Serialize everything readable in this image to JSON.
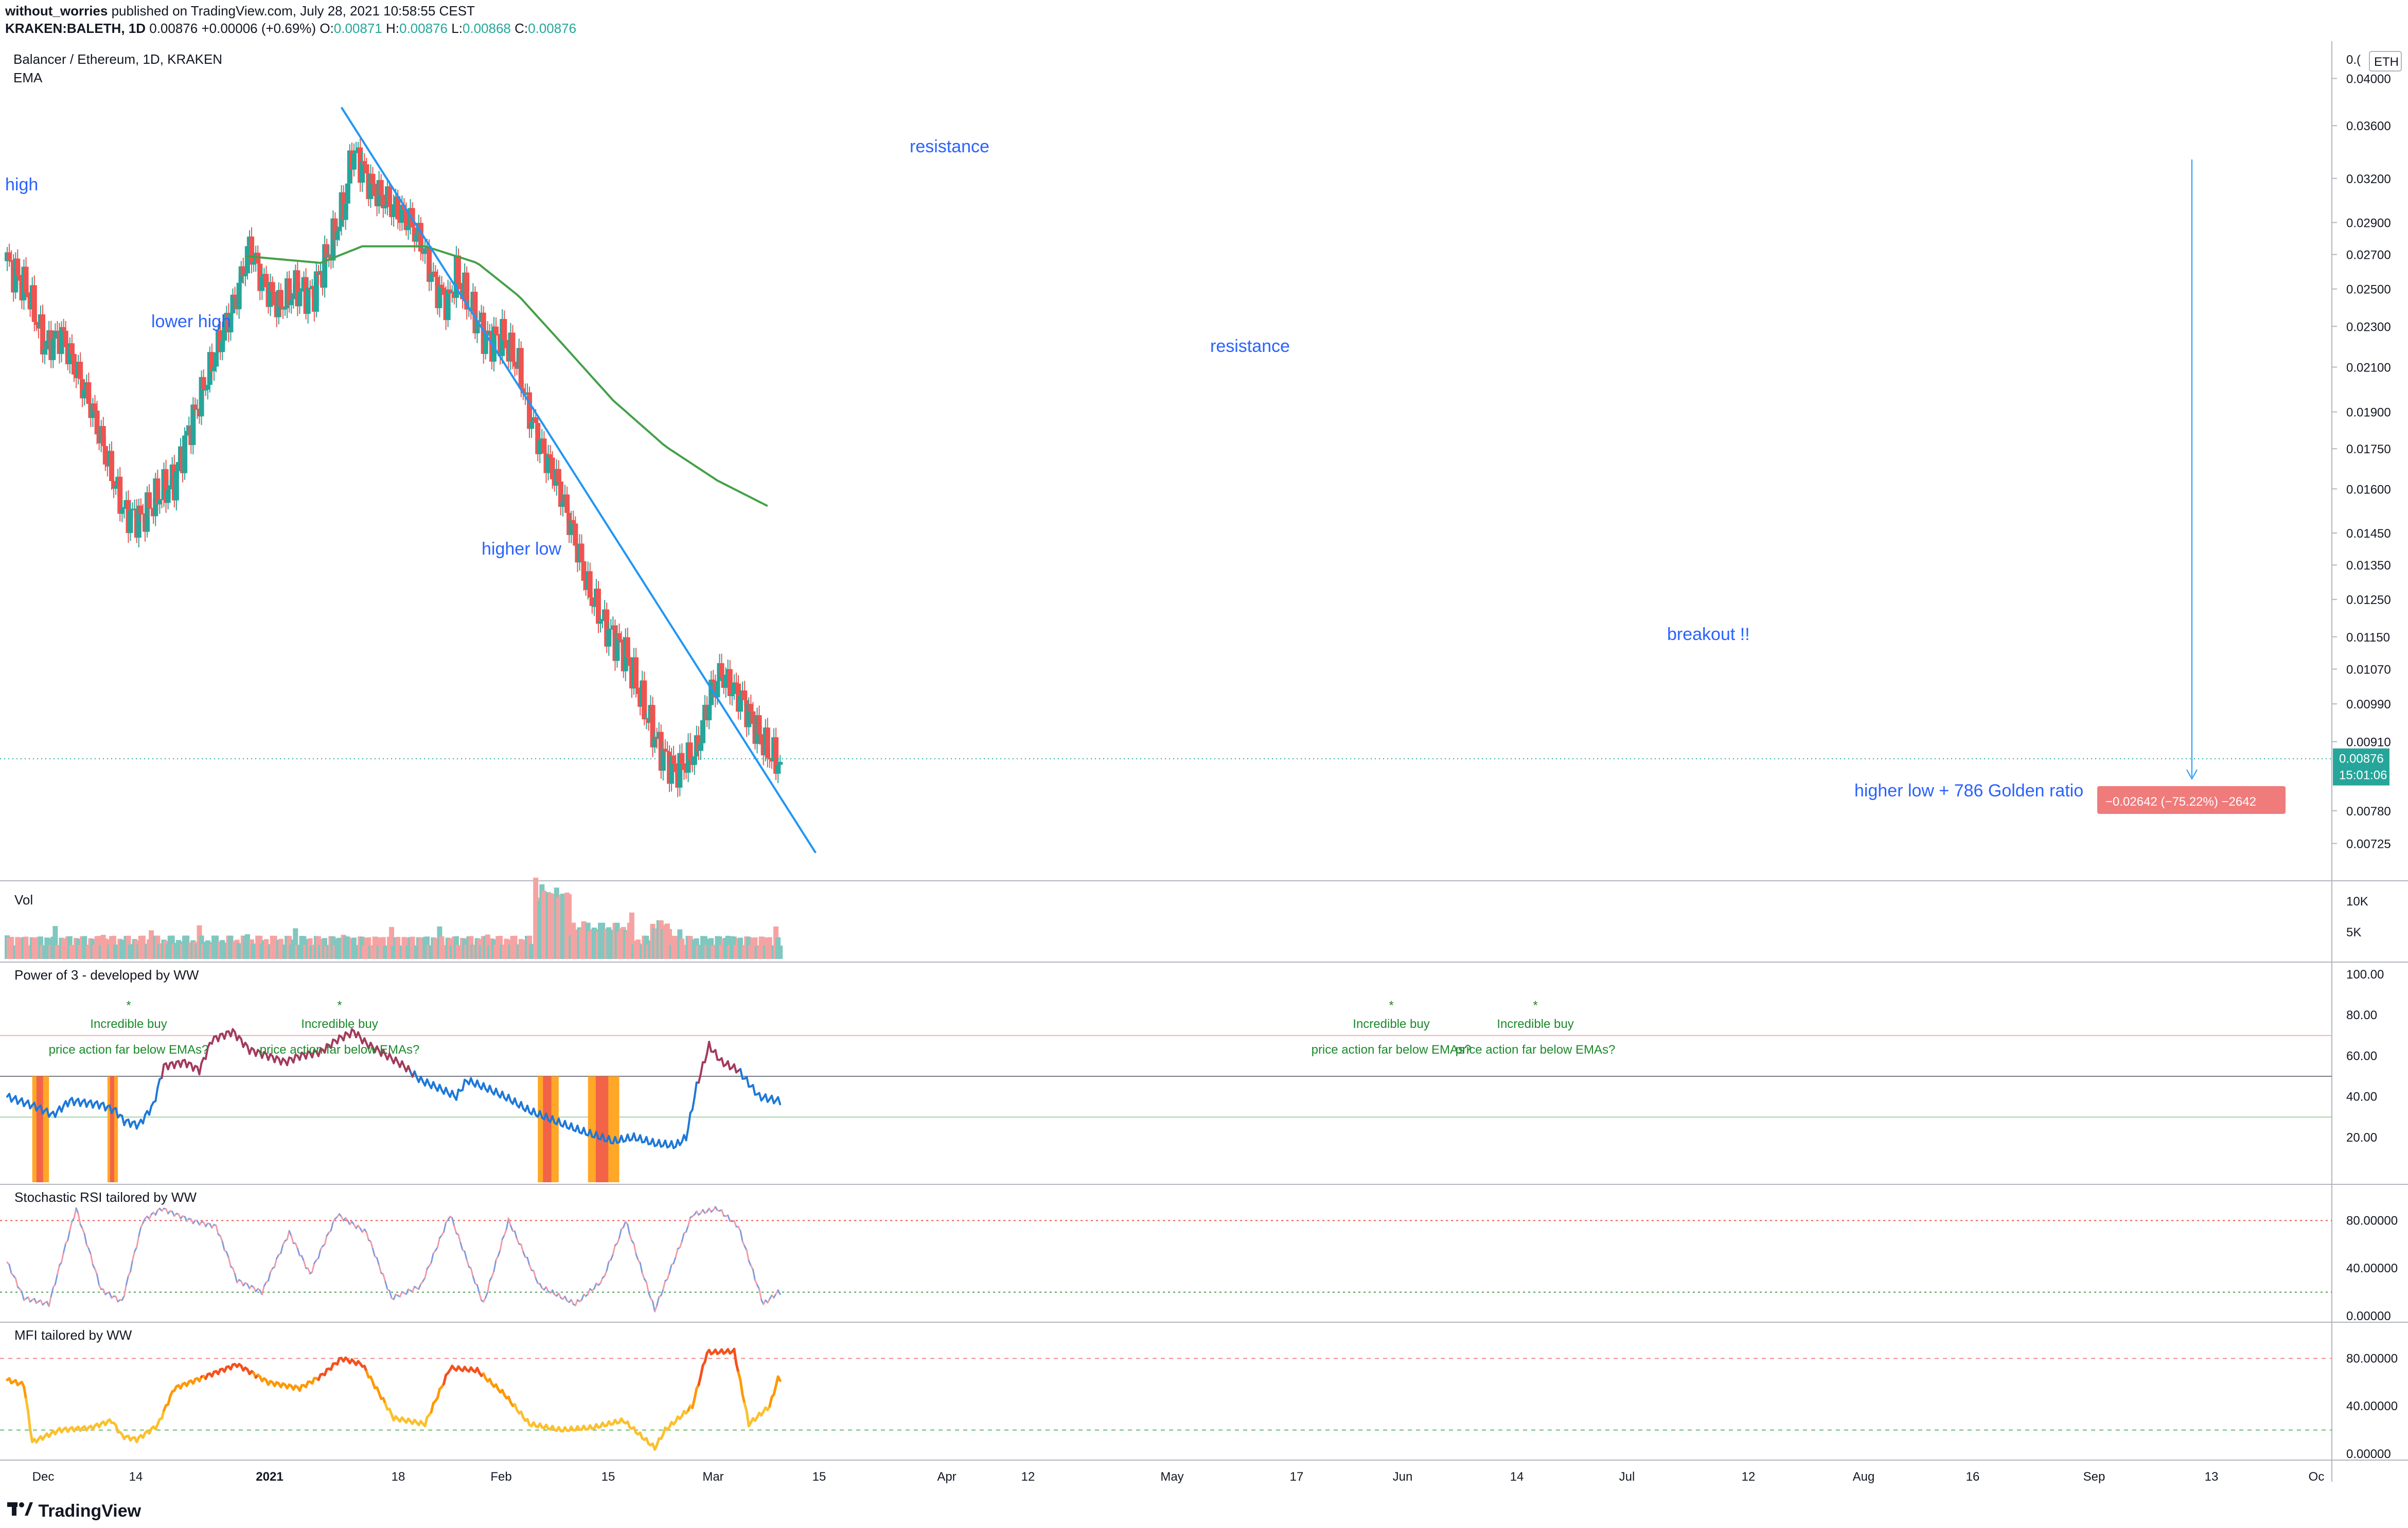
{
  "header": {
    "author": "without_worries",
    "published": "published on TradingView.com, July 28, 2021 10:58:55 CEST",
    "symbol": "KRAKEN:BALETH, 1D",
    "last": "0.00876",
    "change": "+0.00006 (+0.69%)",
    "o_label": "O:",
    "o": "0.00871",
    "h_label": "H:",
    "h": "0.00876",
    "l_label": "L:",
    "l": "0.00868",
    "c_label": "C:",
    "c": "0.00876"
  },
  "footer": {
    "brand": "TradingView"
  },
  "colors": {
    "up": "#26a69a",
    "down": "#ef5350",
    "ema": "#43a047",
    "trend": "#2196f3",
    "mfi": "#ff9800",
    "p3": "#2a6ad6"
  },
  "chart_data": [
    {
      "type": "candlestick",
      "title": "Balancer / Ethereum, 1D, KRAKEN",
      "subtitle": "EMA",
      "currency": "ETH",
      "y_scale": "log",
      "ylim": [
        0.007,
        0.042
      ],
      "y_ticks": [
        "0.04000",
        "0.03600",
        "0.03200",
        "0.02900",
        "0.02700",
        "0.02500",
        "0.02300",
        "0.02100",
        "0.01900",
        "0.01750",
        "0.01600",
        "0.01450",
        "0.01350",
        "0.01250",
        "0.01150",
        "0.01070",
        "0.00990",
        "0.00910",
        "0.00780",
        "0.00725"
      ],
      "x_tick_labels": [
        "Dec",
        "14",
        "2021",
        "18",
        "Feb",
        "15",
        "Mar",
        "15",
        "Apr",
        "12",
        "May",
        "17",
        "Jun",
        "14",
        "Jul",
        "12",
        "Aug",
        "16",
        "Sep",
        "13",
        "Oc"
      ],
      "last_price_label": "0.00876",
      "countdown_label": "15:01:06",
      "top_axis_label": "0.(",
      "price_range_label": "−0.02642 (−75.22%) −2642",
      "path_points": [
        [
          0,
          0.0266
        ],
        [
          10,
          0.0248
        ],
        [
          18,
          0.022
        ],
        [
          26,
          0.0226
        ],
        [
          34,
          0.0206
        ],
        [
          40,
          0.0193
        ],
        [
          48,
          0.017
        ],
        [
          56,
          0.0152
        ],
        [
          64,
          0.015
        ],
        [
          73,
          0.0158
        ],
        [
          80,
          0.0163
        ],
        [
          86,
          0.018
        ],
        [
          94,
          0.02
        ],
        [
          102,
          0.0223
        ],
        [
          110,
          0.0247
        ],
        [
          116,
          0.0275
        ],
        [
          122,
          0.0255
        ],
        [
          130,
          0.024
        ],
        [
          138,
          0.025
        ],
        [
          146,
          0.0247
        ],
        [
          155,
          0.0275
        ],
        [
          162,
          0.0305
        ],
        [
          165,
          0.034
        ],
        [
          168,
          0.0335
        ],
        [
          175,
          0.0312
        ],
        [
          185,
          0.03
        ],
        [
          193,
          0.029
        ],
        [
          199,
          0.0275
        ],
        [
          205,
          0.0252
        ],
        [
          211,
          0.0242
        ],
        [
          215,
          0.0258
        ],
        [
          221,
          0.0242
        ],
        [
          230,
          0.0223
        ],
        [
          237,
          0.0225
        ],
        [
          242,
          0.0215
        ],
        [
          245,
          0.021
        ],
        [
          249,
          0.0192
        ],
        [
          256,
          0.0175
        ],
        [
          263,
          0.0163
        ],
        [
          271,
          0.0145
        ],
        [
          278,
          0.0128
        ],
        [
          286,
          0.0118
        ],
        [
          296,
          0.0111
        ],
        [
          305,
          0.0098
        ],
        [
          312,
          0.009
        ],
        [
          320,
          0.0085
        ],
        [
          330,
          0.0089
        ],
        [
          337,
          0.0102
        ],
        [
          342,
          0.0106
        ],
        [
          348,
          0.0102
        ],
        [
          352,
          0.01
        ],
        [
          358,
          0.0094
        ],
        [
          364,
          0.0089
        ],
        [
          369,
          0.0087
        ]
      ],
      "ema": {
        "name": "EMA",
        "points": [
          [
            114,
            0.0269
          ],
          [
            150,
            0.0265
          ],
          [
            170,
            0.0275
          ],
          [
            200,
            0.0275
          ],
          [
            225,
            0.0265
          ],
          [
            245,
            0.0246
          ],
          [
            265,
            0.0222
          ],
          [
            290,
            0.0195
          ],
          [
            315,
            0.0176
          ],
          [
            340,
            0.0163
          ],
          [
            364,
            0.0154
          ]
        ]
      },
      "trendline": {
        "points": [
          [
            160,
            0.0375
          ],
          [
            387,
            0.0071
          ]
        ]
      },
      "annotations": [
        "high",
        "lower high",
        "higher low",
        "resistance",
        "resistance",
        "breakout !!",
        "higher low + 786 Golden ratio"
      ]
    },
    {
      "type": "bar",
      "title": "Vol",
      "y_ticks": [
        "10K",
        "5K"
      ]
    },
    {
      "type": "line",
      "title": "Power of 3 - developed by WW",
      "ylim": [
        0,
        100
      ],
      "y_ticks": [
        "100.00",
        "80.00",
        "60.00",
        "40.00",
        "20.00"
      ],
      "levels": [
        70,
        50,
        30
      ],
      "annotations": [
        "*",
        "Incredible buy",
        "price action far below EMAs?",
        "*",
        "Incredible buy",
        "price action far below EMAs?",
        "*",
        "Incredible buy",
        "price action far below EMAs?",
        "*",
        "Incredible buy",
        "price action far below EMAs?"
      ],
      "series": [
        {
          "points": [
            [
              0,
              40
            ],
            [
              14,
              35
            ],
            [
              22,
              31
            ],
            [
              30,
              38
            ],
            [
              45,
              36
            ],
            [
              52,
              33
            ],
            [
              56,
              28
            ],
            [
              63,
              26
            ],
            [
              70,
              36
            ],
            [
              75,
              55
            ],
            [
              85,
              57
            ],
            [
              92,
              53
            ],
            [
              98,
              68
            ],
            [
              108,
              72
            ],
            [
              116,
              63
            ],
            [
              125,
              60
            ],
            [
              133,
              57
            ],
            [
              140,
              60
            ],
            [
              150,
              62
            ],
            [
              158,
              68
            ],
            [
              166,
              72
            ],
            [
              172,
              66
            ],
            [
              182,
              60
            ],
            [
              190,
              55
            ],
            [
              198,
              48
            ],
            [
              207,
              44
            ],
            [
              215,
              40
            ],
            [
              220,
              48
            ],
            [
              225,
              46
            ],
            [
              232,
              43
            ],
            [
              240,
              39
            ],
            [
              250,
              33
            ],
            [
              262,
              28
            ],
            [
              275,
              23
            ],
            [
              290,
              18
            ],
            [
              300,
              20
            ],
            [
              310,
              17
            ],
            [
              320,
              16
            ],
            [
              325,
              20
            ],
            [
              330,
              45
            ],
            [
              336,
              65
            ],
            [
              342,
              57
            ],
            [
              350,
              53
            ],
            [
              360,
              40
            ],
            [
              369,
              38
            ]
          ]
        }
      ]
    },
    {
      "type": "line",
      "title": "Stochastic RSI tailored by WW",
      "ylim": [
        0,
        100
      ],
      "y_ticks": [
        "80.00000",
        "40.00000",
        "0.00000"
      ],
      "levels": [
        80,
        20
      ],
      "series": [
        {
          "points": [
            [
              0,
              45
            ],
            [
              8,
              15
            ],
            [
              20,
              10
            ],
            [
              33,
              90
            ],
            [
              45,
              22
            ],
            [
              55,
              12
            ],
            [
              65,
              80
            ],
            [
              74,
              90
            ],
            [
              88,
              80
            ],
            [
              100,
              75
            ],
            [
              110,
              30
            ],
            [
              122,
              20
            ],
            [
              135,
              70
            ],
            [
              145,
              35
            ],
            [
              158,
              85
            ],
            [
              172,
              70
            ],
            [
              184,
              15
            ],
            [
              198,
              25
            ],
            [
              212,
              85
            ],
            [
              228,
              10
            ],
            [
              240,
              80
            ],
            [
              255,
              25
            ],
            [
              272,
              10
            ],
            [
              285,
              30
            ],
            [
              296,
              80
            ],
            [
              310,
              5
            ],
            [
              320,
              50
            ],
            [
              328,
              85
            ],
            [
              340,
              90
            ],
            [
              350,
              75
            ],
            [
              362,
              10
            ],
            [
              369,
              20
            ]
          ]
        }
      ]
    },
    {
      "type": "line",
      "title": "MFI tailored by WW",
      "ylim": [
        0,
        100
      ],
      "y_ticks": [
        "80.00000",
        "40.00000",
        "0.00000"
      ],
      "levels": [
        80,
        20
      ],
      "series": [
        {
          "points": [
            [
              0,
              62
            ],
            [
              8,
              58
            ],
            [
              12,
              10
            ],
            [
              25,
              20
            ],
            [
              40,
              22
            ],
            [
              50,
              28
            ],
            [
              55,
              15
            ],
            [
              62,
              12
            ],
            [
              72,
              24
            ],
            [
              80,
              55
            ],
            [
              95,
              65
            ],
            [
              110,
              75
            ],
            [
              125,
              60
            ],
            [
              140,
              55
            ],
            [
              150,
              65
            ],
            [
              160,
              80
            ],
            [
              170,
              75
            ],
            [
              185,
              30
            ],
            [
              200,
              25
            ],
            [
              212,
              72
            ],
            [
              225,
              70
            ],
            [
              238,
              50
            ],
            [
              250,
              25
            ],
            [
              265,
              20
            ],
            [
              280,
              22
            ],
            [
              295,
              28
            ],
            [
              310,
              5
            ],
            [
              315,
              20
            ],
            [
              328,
              40
            ],
            [
              335,
              85
            ],
            [
              348,
              86
            ],
            [
              355,
              25
            ],
            [
              365,
              40
            ],
            [
              369,
              63
            ]
          ]
        }
      ]
    }
  ]
}
